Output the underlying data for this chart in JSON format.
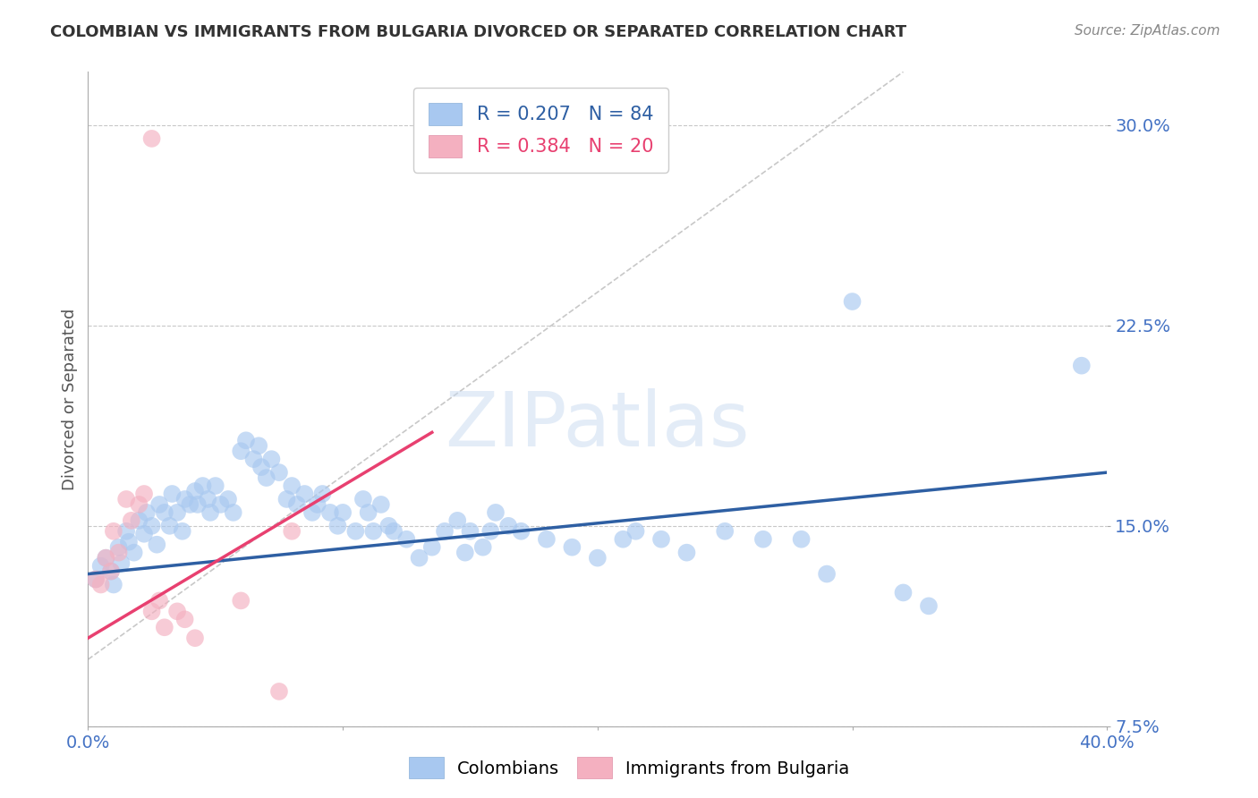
{
  "title": "COLOMBIAN VS IMMIGRANTS FROM BULGARIA DIVORCED OR SEPARATED CORRELATION CHART",
  "source": "Source: ZipAtlas.com",
  "ylabel": "Divorced or Separated",
  "xlim": [
    0.0,
    0.4
  ],
  "ylim": [
    0.1,
    0.32
  ],
  "watermark": "ZIPatlas",
  "legend_entries": [
    {
      "label": "R = 0.207   N = 84",
      "color": "#7eb3e8"
    },
    {
      "label": "R = 0.384   N = 20",
      "color": "#f4a0b0"
    }
  ],
  "blue_line": {
    "x0": 0.0,
    "y0": 0.132,
    "x1": 0.4,
    "y1": 0.17
  },
  "pink_line": {
    "x0": 0.0,
    "y0": 0.108,
    "x1": 0.135,
    "y1": 0.185
  },
  "diagonal_line": {
    "x0": 0.0,
    "y0": 0.1,
    "x1": 0.32,
    "y1": 0.32
  },
  "blue_scatter": [
    [
      0.003,
      0.13
    ],
    [
      0.005,
      0.135
    ],
    [
      0.007,
      0.138
    ],
    [
      0.009,
      0.133
    ],
    [
      0.01,
      0.128
    ],
    [
      0.012,
      0.142
    ],
    [
      0.013,
      0.136
    ],
    [
      0.015,
      0.148
    ],
    [
      0.016,
      0.144
    ],
    [
      0.018,
      0.14
    ],
    [
      0.02,
      0.152
    ],
    [
      0.022,
      0.147
    ],
    [
      0.023,
      0.155
    ],
    [
      0.025,
      0.15
    ],
    [
      0.027,
      0.143
    ],
    [
      0.028,
      0.158
    ],
    [
      0.03,
      0.155
    ],
    [
      0.032,
      0.15
    ],
    [
      0.033,
      0.162
    ],
    [
      0.035,
      0.155
    ],
    [
      0.037,
      0.148
    ],
    [
      0.038,
      0.16
    ],
    [
      0.04,
      0.158
    ],
    [
      0.042,
      0.163
    ],
    [
      0.043,
      0.158
    ],
    [
      0.045,
      0.165
    ],
    [
      0.047,
      0.16
    ],
    [
      0.048,
      0.155
    ],
    [
      0.05,
      0.165
    ],
    [
      0.052,
      0.158
    ],
    [
      0.055,
      0.16
    ],
    [
      0.057,
      0.155
    ],
    [
      0.06,
      0.178
    ],
    [
      0.062,
      0.182
    ],
    [
      0.065,
      0.175
    ],
    [
      0.067,
      0.18
    ],
    [
      0.068,
      0.172
    ],
    [
      0.07,
      0.168
    ],
    [
      0.072,
      0.175
    ],
    [
      0.075,
      0.17
    ],
    [
      0.078,
      0.16
    ],
    [
      0.08,
      0.165
    ],
    [
      0.082,
      0.158
    ],
    [
      0.085,
      0.162
    ],
    [
      0.088,
      0.155
    ],
    [
      0.09,
      0.158
    ],
    [
      0.092,
      0.162
    ],
    [
      0.095,
      0.155
    ],
    [
      0.098,
      0.15
    ],
    [
      0.1,
      0.155
    ],
    [
      0.105,
      0.148
    ],
    [
      0.108,
      0.16
    ],
    [
      0.11,
      0.155
    ],
    [
      0.112,
      0.148
    ],
    [
      0.115,
      0.158
    ],
    [
      0.118,
      0.15
    ],
    [
      0.12,
      0.148
    ],
    [
      0.125,
      0.145
    ],
    [
      0.13,
      0.138
    ],
    [
      0.135,
      0.142
    ],
    [
      0.14,
      0.148
    ],
    [
      0.145,
      0.152
    ],
    [
      0.148,
      0.14
    ],
    [
      0.15,
      0.148
    ],
    [
      0.155,
      0.142
    ],
    [
      0.158,
      0.148
    ],
    [
      0.16,
      0.155
    ],
    [
      0.165,
      0.15
    ],
    [
      0.17,
      0.148
    ],
    [
      0.18,
      0.145
    ],
    [
      0.19,
      0.142
    ],
    [
      0.2,
      0.138
    ],
    [
      0.21,
      0.145
    ],
    [
      0.215,
      0.148
    ],
    [
      0.225,
      0.145
    ],
    [
      0.235,
      0.14
    ],
    [
      0.25,
      0.148
    ],
    [
      0.265,
      0.145
    ],
    [
      0.28,
      0.145
    ],
    [
      0.29,
      0.132
    ],
    [
      0.3,
      0.234
    ],
    [
      0.32,
      0.125
    ],
    [
      0.33,
      0.12
    ],
    [
      0.39,
      0.21
    ]
  ],
  "pink_scatter": [
    [
      0.003,
      0.13
    ],
    [
      0.005,
      0.128
    ],
    [
      0.007,
      0.138
    ],
    [
      0.009,
      0.133
    ],
    [
      0.01,
      0.148
    ],
    [
      0.012,
      0.14
    ],
    [
      0.015,
      0.16
    ],
    [
      0.017,
      0.152
    ],
    [
      0.02,
      0.158
    ],
    [
      0.022,
      0.162
    ],
    [
      0.025,
      0.118
    ],
    [
      0.028,
      0.122
    ],
    [
      0.03,
      0.112
    ],
    [
      0.035,
      0.118
    ],
    [
      0.038,
      0.115
    ],
    [
      0.042,
      0.108
    ],
    [
      0.06,
      0.122
    ],
    [
      0.08,
      0.148
    ],
    [
      0.025,
      0.295
    ],
    [
      0.075,
      0.088
    ]
  ],
  "blue_color": "#a8c8f0",
  "pink_color": "#f4b0c0",
  "blue_line_color": "#2e5fa3",
  "pink_line_color": "#e84070",
  "diagonal_color": "#c8c8c8",
  "grid_color": "#c8c8c8",
  "ytick_color": "#4472c4",
  "xtick_color": "#4472c4",
  "title_color": "#333333",
  "source_color": "#888888",
  "yticks": [
    0.15,
    0.225,
    0.3
  ],
  "ytick_labels": [
    "15.0%",
    "22.5%",
    "30.0%"
  ],
  "ytick_lower": 0.075
}
